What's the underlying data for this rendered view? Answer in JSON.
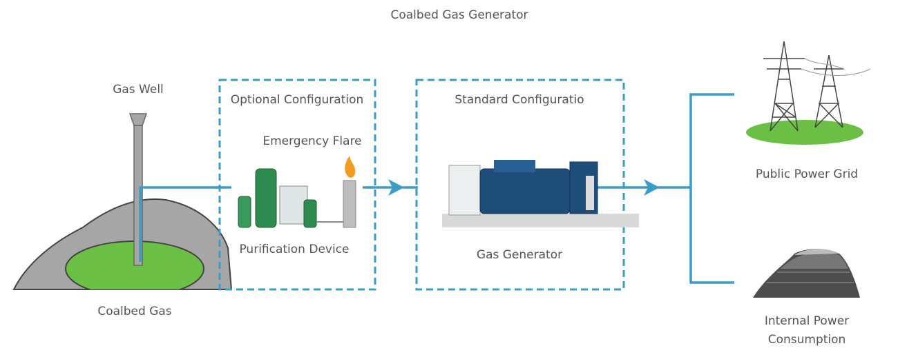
{
  "title": "Coalbed Gas Generator",
  "groups": [
    {
      "label": "Optional Configuration"
    },
    {
      "label": "Standard Configuratio"
    }
  ],
  "nodes": [
    {
      "label": "Gas Well"
    },
    {
      "label": "Coalbed Gas"
    },
    {
      "label": "Emergency Flare"
    },
    {
      "label": "Purification Device"
    },
    {
      "label": "Gas Generator"
    },
    {
      "label": "Public Power Grid"
    },
    {
      "lines": [
        "Internal Power",
        "Consumption"
      ]
    }
  ]
}
